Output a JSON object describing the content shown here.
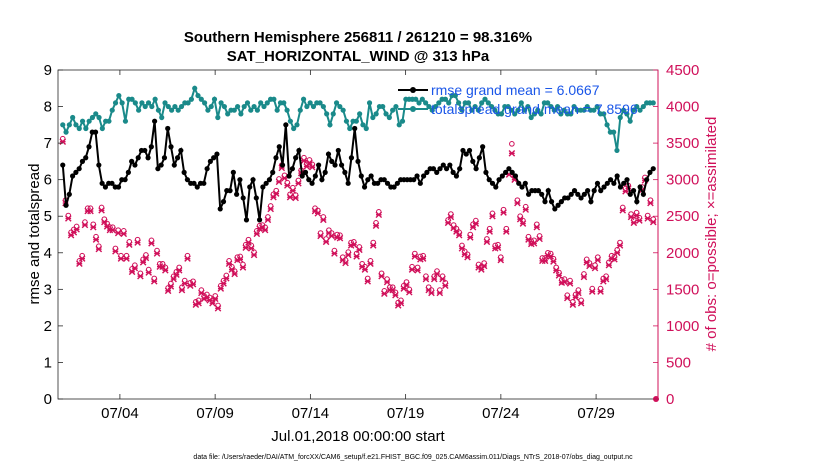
{
  "chart_data": {
    "type": "line",
    "title": "Southern Hemisphere 256811 / 261210 = 98.316%",
    "subtitle": "SAT_HORIZONTAL_WIND @ 313 hPa",
    "xlabel": "Jul.01,2018 00:00:00 start",
    "ylabel": "rmse and totalspread",
    "ylabel_right": "# of obs: o=possible; ×=assimilated",
    "footer": "data file: /Users/raeder/DAI/ATM_forcXX/CAM6_setup/f.e21.FHIST_BGC.f09_025.CAM6assim.011/Diags_NTrS_2018-07/obs_diag_output.nc",
    "x_ticks": [
      {
        "x": 4,
        "label": "07/04"
      },
      {
        "x": 9,
        "label": "07/09"
      },
      {
        "x": 14,
        "label": "07/14"
      },
      {
        "x": 19,
        "label": "07/19"
      },
      {
        "x": 24,
        "label": "07/24"
      },
      {
        "x": 29,
        "label": "07/29"
      }
    ],
    "xlim": [
      0.75,
      32.25
    ],
    "ylim": [
      0,
      9
    ],
    "y_ticks": [
      0,
      1,
      2,
      3,
      4,
      5,
      6,
      7,
      8,
      9
    ],
    "ylim_right": [
      0,
      4500
    ],
    "y_ticks_right": [
      0,
      500,
      1000,
      1500,
      2000,
      2500,
      3000,
      3500,
      4000,
      4500
    ],
    "legend_position": "top-right",
    "colors": {
      "rmse": "#000000",
      "spread": "#1a8a8a",
      "obs": "#d0105a",
      "legend_text": "#1a56e8"
    },
    "series": [
      {
        "name": "rmse grand mean = 6.0667",
        "axis": "left",
        "values": [
          6.4,
          5.3,
          5.6,
          6.1,
          6.2,
          6.3,
          6.5,
          6.6,
          6.9,
          7.3,
          7.3,
          6.4,
          5.9,
          5.8,
          5.9,
          5.9,
          5.8,
          5.8,
          6.0,
          6.0,
          6.2,
          6.5,
          6.4,
          6.6,
          6.8,
          6.8,
          6.6,
          6.9,
          7.6,
          6.3,
          6.4,
          6.6,
          7.4,
          6.9,
          6.4,
          6.6,
          6.8,
          6.2,
          6.0,
          5.9,
          5.9,
          5.8,
          5.9,
          5.9,
          6.3,
          6.5,
          6.6,
          6.7,
          5.2,
          5.4,
          5.7,
          5.7,
          6.2,
          5.6,
          6.0,
          5.5,
          4.9,
          5.8,
          6.0,
          5.5,
          4.9,
          5.8,
          5.9,
          6.0,
          6.2,
          6.6,
          6.9,
          6.4,
          7.5,
          6.1,
          6.3,
          6.6,
          6.8,
          6.1,
          6.2,
          6.0,
          5.9,
          6.1,
          6.4,
          6.0,
          6.2,
          6.7,
          6.5,
          6.4,
          6.8,
          6.4,
          6.2,
          5.9,
          6.6,
          7.4,
          6.5,
          6.1,
          5.8,
          6.0,
          6.1,
          5.9,
          5.9,
          6.0,
          6.0,
          5.9,
          5.8,
          5.8,
          5.9,
          6.0,
          6.0,
          6.0,
          6.0,
          6.0,
          6.1,
          5.9,
          6.1,
          6.2,
          6.3,
          6.3,
          6.2,
          6.3,
          6.4,
          6.3,
          6.4,
          6.2,
          6.1,
          6.3,
          6.8,
          6.7,
          6.8,
          6.5,
          6.3,
          6.6,
          6.9,
          6.2,
          6.0,
          5.9,
          5.8,
          6.0,
          6.1,
          6.2,
          6.3,
          6.2,
          6.1,
          5.9,
          5.8,
          5.9,
          5.6,
          5.7,
          5.7,
          5.7,
          5.6,
          5.4,
          5.7,
          5.4,
          5.2,
          5.3,
          5.4,
          5.5,
          5.5,
          5.6,
          5.7,
          5.6,
          5.5,
          5.6,
          5.7,
          5.4,
          5.7,
          5.9,
          5.7,
          5.8,
          5.9,
          6.0,
          5.9,
          6.1,
          5.8,
          5.9,
          6.0,
          5.6,
          5.7,
          5.4,
          5.8,
          5.6,
          6.0,
          6.2,
          6.3
        ]
      },
      {
        "name": "totalspread grand mean = 7.8596",
        "axis": "left",
        "values": [
          7.5,
          7.3,
          7.5,
          7.7,
          7.5,
          7.4,
          7.6,
          7.4,
          7.6,
          7.7,
          7.8,
          7.7,
          7.4,
          7.6,
          7.6,
          7.9,
          8.1,
          8.3,
          8.1,
          7.6,
          8.2,
          8.2,
          8.1,
          7.9,
          8.1,
          8.0,
          8.1,
          8.0,
          8.2,
          7.9,
          7.7,
          8.1,
          8.0,
          7.9,
          8.0,
          7.9,
          8.0,
          8.1,
          8.1,
          8.2,
          8.5,
          8.3,
          8.2,
          8.1,
          7.9,
          8.0,
          8.2,
          7.7,
          8.1,
          8.0,
          7.8,
          7.9,
          7.9,
          8.0,
          7.8,
          8.0,
          8.1,
          7.9,
          8.0,
          7.9,
          8.1,
          8.0,
          8.1,
          8.2,
          8.2,
          7.9,
          8.1,
          8.1,
          7.9,
          7.6,
          7.4,
          7.5,
          7.9,
          8.2,
          8.0,
          8.1,
          8.0,
          8.1,
          8.1,
          8.0,
          7.8,
          7.5,
          7.8,
          8.1,
          8.0,
          7.9,
          7.6,
          7.4,
          7.6,
          7.6,
          7.8,
          7.5,
          7.4,
          8.1,
          7.7,
          7.8,
          8.0,
          8.0,
          7.8,
          7.7,
          7.9,
          8.0,
          7.5,
          7.6,
          8.2,
          8.2,
          8.2,
          8.2,
          8.1,
          8.2,
          8.1,
          8.0,
          7.9,
          8.0,
          8.1,
          8.2,
          8.2,
          8.1,
          8.3,
          8.3,
          8.1,
          7.9,
          8.1,
          8.1,
          7.9,
          8.0,
          7.9,
          8.1,
          8.2,
          8.1,
          8.0,
          7.9,
          7.8,
          7.8,
          8.0,
          8.0,
          7.9,
          7.8,
          7.9,
          8.1,
          7.9,
          8.0,
          7.7,
          7.8,
          7.9,
          7.8,
          8.1,
          8.1,
          8.0,
          7.9,
          8.0,
          7.8,
          7.9,
          7.8,
          7.8,
          8.0,
          7.9,
          7.9,
          7.9,
          8.0,
          7.9,
          7.9,
          8.0,
          7.8,
          7.8,
          7.5,
          7.3,
          7.3,
          6.8,
          7.7,
          7.9,
          7.8,
          7.6,
          7.9,
          8.0,
          7.9,
          8.0,
          8.1,
          8.1,
          8.1
        ]
      },
      {
        "name": "obs possible",
        "axis": "right",
        "values": [
          3560,
          2720,
          2510,
          2280,
          2320,
          2360,
          1890,
          1960,
          2420,
          2610,
          2610,
          2390,
          2220,
          2090,
          2620,
          2460,
          2400,
          2350,
          2350,
          2060,
          2310,
          1960,
          2300,
          1960,
          2150,
          1780,
          1830,
          2180,
          1720,
          1910,
          1970,
          1770,
          2170,
          1650,
          2030,
          1850,
          1850,
          1800,
          1520,
          1580,
          1680,
          1740,
          1800,
          1530,
          1620,
          1960,
          1590,
          1610,
          1330,
          1350,
          1490,
          1410,
          1430,
          1390,
          1350,
          1410,
          1280,
          1550,
          1620,
          1690,
          1890,
          1810,
          1750,
          1940,
          1950,
          1840,
          2110,
          2180,
          2100,
          2010,
          2300,
          2370,
          2380,
          2350,
          2490,
          2640,
          2800,
          2850,
          3010,
          3200,
          3060,
          2960,
          2800,
          2890,
          2790,
          2990,
          3130,
          3300,
          3220,
          3270,
          3210,
          2610,
          2580,
          2270,
          2490,
          2190,
          2310,
          2270,
          2030,
          2250,
          2240,
          1940,
          1900,
          2010,
          2140,
          2150,
          1990,
          2080,
          1850,
          1810,
          1650,
          1890,
          2140,
          2410,
          2560,
          1720,
          1480,
          1640,
          1530,
          1530,
          1460,
          1320,
          1350,
          1550,
          1600,
          1500,
          1810,
          1990,
          1800,
          1950,
          1960,
          1680,
          1530,
          1490,
          1680,
          1750,
          1490,
          1680,
          1590,
          2450,
          2530,
          2380,
          2330,
          2280,
          2100,
          2020,
          1980,
          2250,
          2390,
          2440,
          1840,
          1810,
          1860,
          2190,
          2330,
          2540,
          2100,
          2110,
          1940,
          2590,
          2330,
          3110,
          3490,
          3040,
          2720,
          2500,
          2440,
          2630,
          2220,
          2160,
          2170,
          2390,
          2230,
          1930,
          1930,
          2000,
          1990,
          1920,
          1800,
          1730,
          1630,
          1640,
          1420,
          1620,
          1330,
          1430,
          1490,
          1350,
          1710,
          1910,
          1860,
          1510,
          1830,
          1940,
          1510,
          1650,
          1680,
          1870,
          1960,
          1950,
          2040,
          2140,
          2620,
          2880,
          2920,
          2530,
          2450,
          2550,
          2480,
          2900,
          3030,
          2510,
          2720,
          2460
        ]
      },
      {
        "name": "obs assimilated",
        "axis": "right",
        "values": [
          3520,
          2680,
          2470,
          2240,
          2280,
          2320,
          1850,
          1920,
          2380,
          2570,
          2570,
          2350,
          2180,
          2050,
          2580,
          2420,
          2360,
          2310,
          2310,
          2020,
          2270,
          1920,
          2260,
          1920,
          2110,
          1740,
          1790,
          2140,
          1680,
          1870,
          1930,
          1730,
          2130,
          1610,
          1990,
          1810,
          1810,
          1760,
          1480,
          1540,
          1640,
          1700,
          1760,
          1490,
          1580,
          1920,
          1550,
          1570,
          1290,
          1310,
          1450,
          1370,
          1390,
          1350,
          1310,
          1370,
          1240,
          1510,
          1580,
          1650,
          1850,
          1770,
          1710,
          1900,
          1910,
          1800,
          2070,
          2140,
          2060,
          1970,
          2260,
          2330,
          2340,
          2310,
          2450,
          2600,
          2760,
          2810,
          2970,
          3160,
          3020,
          2920,
          2760,
          2850,
          2750,
          2950,
          3090,
          3260,
          3180,
          3230,
          3170,
          2570,
          2540,
          2230,
          2450,
          2150,
          2270,
          2230,
          1990,
          2210,
          2200,
          1900,
          1860,
          1970,
          2100,
          2110,
          1950,
          2040,
          1810,
          1770,
          1610,
          1850,
          2100,
          2370,
          2520,
          1680,
          1440,
          1600,
          1490,
          1490,
          1420,
          1280,
          1310,
          1510,
          1560,
          1460,
          1770,
          1950,
          1760,
          1910,
          1920,
          1640,
          1490,
          1450,
          1640,
          1710,
          1450,
          1640,
          1550,
          2410,
          2490,
          2340,
          2290,
          2240,
          2060,
          1980,
          1940,
          2210,
          2350,
          2400,
          1800,
          1770,
          1820,
          2150,
          2290,
          2500,
          2060,
          2070,
          1900,
          2550,
          2290,
          3070,
          3360,
          3000,
          2680,
          2460,
          2400,
          2590,
          2180,
          2120,
          2130,
          2350,
          2190,
          1890,
          1890,
          1960,
          1950,
          1880,
          1760,
          1690,
          1590,
          1600,
          1380,
          1580,
          1290,
          1390,
          1450,
          1310,
          1670,
          1870,
          1820,
          1470,
          1790,
          1900,
          1470,
          1610,
          1640,
          1830,
          1920,
          1910,
          2000,
          2100,
          2580,
          2840,
          2880,
          2490,
          2410,
          2510,
          2440,
          2860,
          2990,
          2470,
          2680,
          2420
        ]
      }
    ]
  }
}
